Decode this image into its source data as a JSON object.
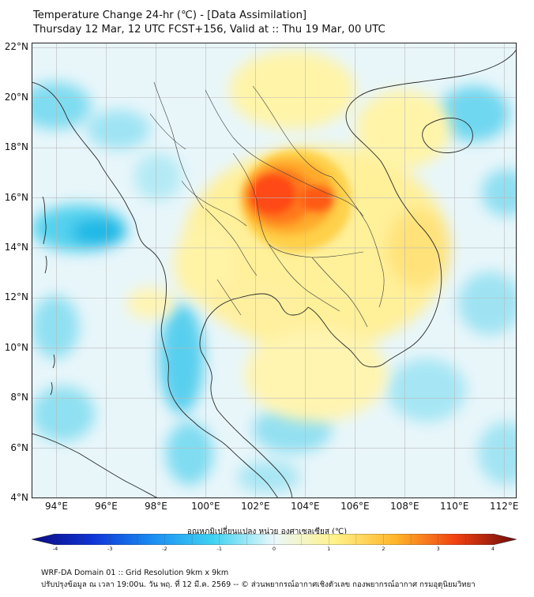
{
  "title": {
    "line1": "Temperature Change 24-hr (℃) - [Data Assimilation]",
    "line2": "Thursday 12 Mar, 12 UTC FCST+156, Valid at :: Thu 19 Mar, 00 UTC"
  },
  "map": {
    "lat_range": [
      4,
      22.2
    ],
    "lon_range": [
      93,
      112.5
    ],
    "lat_ticks": [
      "22°N",
      "20°N",
      "18°N",
      "16°N",
      "14°N",
      "12°N",
      "10°N",
      "8°N",
      "6°N",
      "4°N"
    ],
    "lat_values": [
      22,
      20,
      18,
      16,
      14,
      12,
      10,
      8,
      6,
      4
    ],
    "lon_ticks": [
      "94°E",
      "96°E",
      "98°E",
      "100°E",
      "102°E",
      "104°E",
      "106°E",
      "108°E",
      "110°E",
      "112°E"
    ],
    "lon_values": [
      94,
      96,
      98,
      100,
      102,
      104,
      106,
      108,
      110,
      112
    ],
    "hotspot_center": [
      103.2,
      15.9
    ],
    "colors": {
      "background": "#e6f7fb",
      "warm": "#ffe066",
      "hot": "#ff3300",
      "cool": "#33ccee",
      "coast": "#222222"
    }
  },
  "colorbar": {
    "label": "อุณหภูมิเปลี่ยนแปลง หน่วย องศาเซลเซียส (℃)",
    "min": -4,
    "max": 4,
    "ticks": [
      "-4",
      "-3",
      "-2",
      "-1",
      "0",
      "1",
      "2",
      "3",
      "4"
    ],
    "tick_values": [
      -4,
      -3,
      -2,
      -1,
      0,
      1,
      2,
      3,
      4
    ],
    "stops": [
      "#0a0a80",
      "#1034d6",
      "#1a8ef2",
      "#3fd3f2",
      "#eaf8fb",
      "#fff28a",
      "#ffb52a",
      "#f04010",
      "#6e0a0a"
    ]
  },
  "footer": {
    "line1": "WRF-DA Domain 01 :: Grid Resolution 9km x 9km",
    "line2": "ปรับปรุงข้อมูล ณ เวลา 19:00น. วัน พฤ. ที่ 12 มี.ค. 2569 -- © ส่วนพยากรณ์อากาศเชิงตัวเลข กองพยากรณ์อากาศ กรมอุตุนิยมวิทยา"
  }
}
